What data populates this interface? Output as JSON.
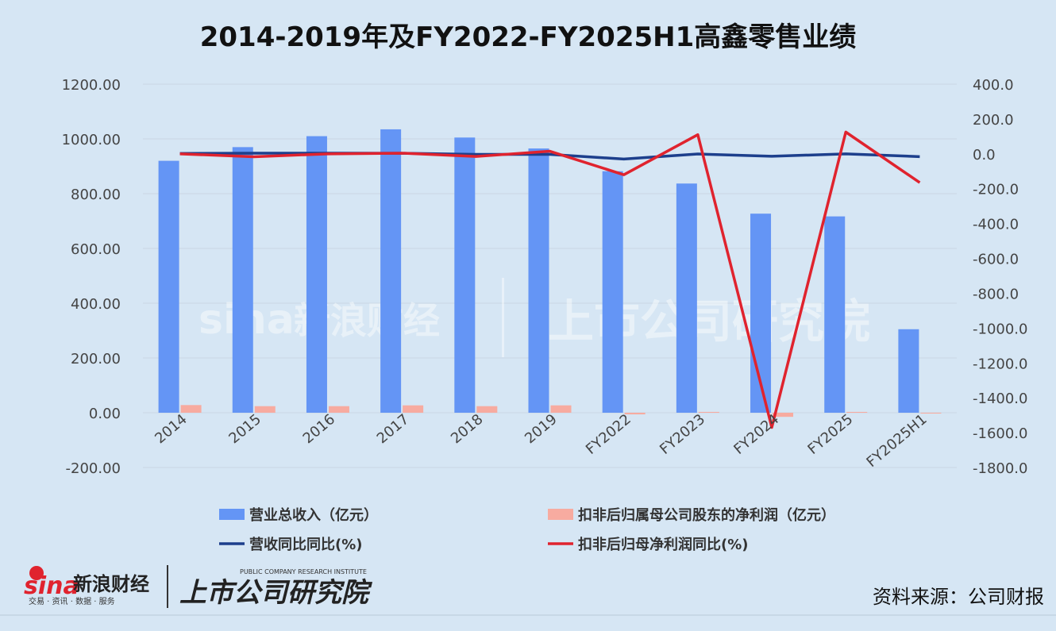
{
  "chart_data": {
    "type": "bar",
    "title": "2014-2019年及FY2022-FY2025H1高鑫零售业绩",
    "categories": [
      "2014",
      "2015",
      "2016",
      "2017",
      "2018",
      "2019",
      "FY2022",
      "FY2023",
      "FY2024",
      "FY2025",
      "FY2025H1"
    ],
    "y_left": {
      "ticks": [
        "1200.00",
        "1000.00",
        "800.00",
        "600.00",
        "400.00",
        "200.00",
        "0.00",
        "-200.00"
      ],
      "range": [
        -200,
        1200
      ]
    },
    "y_right": {
      "ticks": [
        "400.0",
        "200.0",
        "0.0",
        "-200.0",
        "-400.0",
        "-600.0",
        "-800.0",
        "-1000.0",
        "-1200.0",
        "-1400.0",
        "-1600.0",
        "-1800.0"
      ],
      "range": [
        -1800,
        400
      ]
    },
    "series": [
      {
        "name": "营业总收入（亿元）",
        "type": "bar",
        "axis": "left",
        "color": "#6495f5",
        "values": [
          920,
          970,
          1010,
          1035,
          1005,
          965,
          882,
          837,
          727,
          717,
          305
        ]
      },
      {
        "name": "扣非后归属母公司股东的净利润（亿元）",
        "type": "bar",
        "axis": "left",
        "color": "#f7aba0",
        "values": [
          28,
          24,
          24,
          27,
          24,
          27,
          -6,
          3,
          -15,
          3,
          -3
        ]
      },
      {
        "name": "营收同比同比(%)",
        "type": "line",
        "axis": "right",
        "color": "#1d3f8c",
        "values": [
          2,
          4,
          4,
          3,
          -3,
          -3,
          -30,
          -1,
          -14,
          0,
          -16
        ]
      },
      {
        "name": "扣非后归母净利润同比(%)",
        "type": "line",
        "axis": "right",
        "color": "#e0232e",
        "values": [
          0,
          -17,
          0,
          4,
          -15,
          15,
          -120,
          110,
          -1570,
          125,
          -165
        ]
      }
    ],
    "grid": true,
    "legend": "bottom"
  },
  "source_label": "资料来源：公司财报",
  "logos": {
    "sina_brand": "sina",
    "sina_cn": "新浪财经",
    "sina_sub": "交易 · 资讯 · 数据 · 服务",
    "institute_cn": "上市公司研究院",
    "institute_en": "PUBLIC COMPANY RESEARCH INSTITUTE"
  }
}
